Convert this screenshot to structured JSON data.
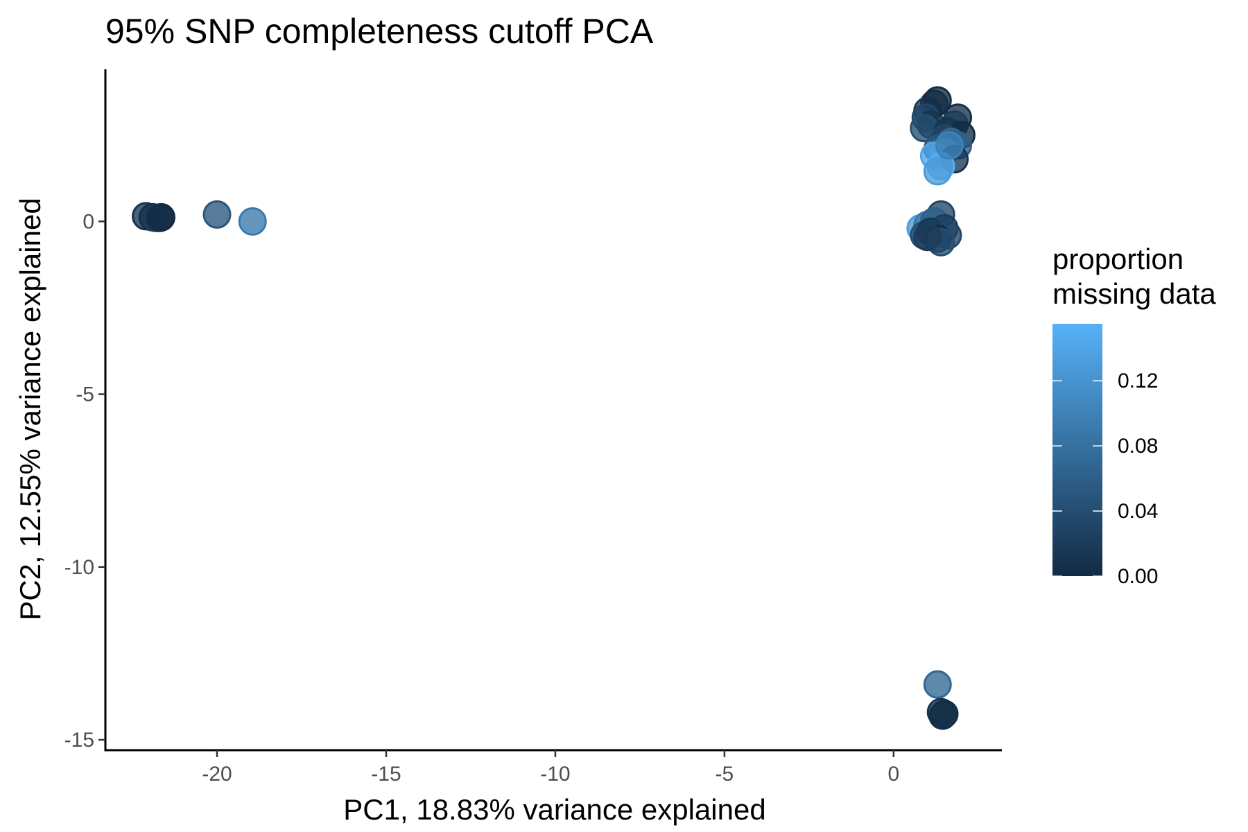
{
  "chart_data": {
    "type": "scatter",
    "title": "95% SNP completeness cutoff PCA",
    "xlabel": "PC1, 18.83% variance explained",
    "ylabel": "PC2, 12.55% variance explained",
    "xlim": [
      -23.3,
      3.2
    ],
    "ylim": [
      -15.3,
      4.4
    ],
    "x_ticks": [
      -20,
      -15,
      -10,
      -5,
      0
    ],
    "x_tick_labels": [
      "-20",
      "-15",
      "-10",
      "-5",
      "0"
    ],
    "y_ticks": [
      0,
      -5,
      -10,
      -15
    ],
    "y_tick_labels": [
      "0",
      "-5",
      "-10",
      "-15"
    ],
    "grid": false,
    "legend": {
      "title": "proportion\nmissing data",
      "title_lines": [
        "proportion",
        "missing data"
      ],
      "placement": "right",
      "range": [
        0,
        0.155
      ],
      "ticks": [
        0.0,
        0.04,
        0.08,
        0.12
      ],
      "tick_labels": [
        "0.00",
        "0.04",
        "0.08",
        "0.12"
      ],
      "color_low": "#132B43",
      "color_high": "#56B1F7"
    },
    "points": [
      {
        "x": -22.1,
        "y": 0.15,
        "c": 0.01
      },
      {
        "x": -21.9,
        "y": 0.12,
        "c": 0.005
      },
      {
        "x": -21.8,
        "y": 0.1,
        "c": 0.02
      },
      {
        "x": -21.7,
        "y": 0.1,
        "c": 0.01
      },
      {
        "x": -21.65,
        "y": 0.12,
        "c": 0.0
      },
      {
        "x": -20.0,
        "y": 0.2,
        "c": 0.05
      },
      {
        "x": -18.95,
        "y": 0.0,
        "c": 0.09
      },
      {
        "x": 1.0,
        "y": 3.2,
        "c": 0.02
      },
      {
        "x": 1.2,
        "y": 3.4,
        "c": 0.01
      },
      {
        "x": 1.3,
        "y": 3.5,
        "c": 0.0
      },
      {
        "x": 0.95,
        "y": 3.0,
        "c": 0.03
      },
      {
        "x": 1.1,
        "y": 2.8,
        "c": 0.01
      },
      {
        "x": 0.9,
        "y": 2.7,
        "c": 0.04
      },
      {
        "x": 1.9,
        "y": 3.0,
        "c": 0.005
      },
      {
        "x": 1.8,
        "y": 2.8,
        "c": 0.02
      },
      {
        "x": 1.6,
        "y": 2.6,
        "c": 0.01
      },
      {
        "x": 2.0,
        "y": 2.5,
        "c": 0.0
      },
      {
        "x": 1.5,
        "y": 2.4,
        "c": 0.03
      },
      {
        "x": 1.7,
        "y": 2.3,
        "c": 0.07
      },
      {
        "x": 1.9,
        "y": 2.2,
        "c": 0.06
      },
      {
        "x": 1.3,
        "y": 2.1,
        "c": 0.05
      },
      {
        "x": 1.5,
        "y": 2.0,
        "c": 0.12
      },
      {
        "x": 1.2,
        "y": 1.9,
        "c": 0.14
      },
      {
        "x": 1.8,
        "y": 1.8,
        "c": 0.01
      },
      {
        "x": 1.4,
        "y": 1.6,
        "c": 0.15
      },
      {
        "x": 1.3,
        "y": 1.45,
        "c": 0.13
      },
      {
        "x": 1.65,
        "y": 2.2,
        "c": 0.1
      },
      {
        "x": 1.4,
        "y": 0.2,
        "c": 0.03
      },
      {
        "x": 0.8,
        "y": -0.2,
        "c": 0.13
      },
      {
        "x": 1.0,
        "y": -0.1,
        "c": 0.09
      },
      {
        "x": 1.2,
        "y": 0.0,
        "c": 0.06
      },
      {
        "x": 0.9,
        "y": -0.4,
        "c": 0.04
      },
      {
        "x": 1.1,
        "y": -0.3,
        "c": 0.01
      },
      {
        "x": 1.5,
        "y": -0.2,
        "c": 0.02
      },
      {
        "x": 1.6,
        "y": -0.4,
        "c": 0.03
      },
      {
        "x": 1.3,
        "y": -0.5,
        "c": 0.0
      },
      {
        "x": 1.4,
        "y": -0.6,
        "c": 0.04
      },
      {
        "x": 1.0,
        "y": -0.45,
        "c": 0.02
      },
      {
        "x": 1.3,
        "y": -13.4,
        "c": 0.07
      },
      {
        "x": 1.4,
        "y": -14.2,
        "c": 0.01
      },
      {
        "x": 1.5,
        "y": -14.25,
        "c": 0.0
      },
      {
        "x": 1.45,
        "y": -14.3,
        "c": 0.005
      }
    ]
  }
}
